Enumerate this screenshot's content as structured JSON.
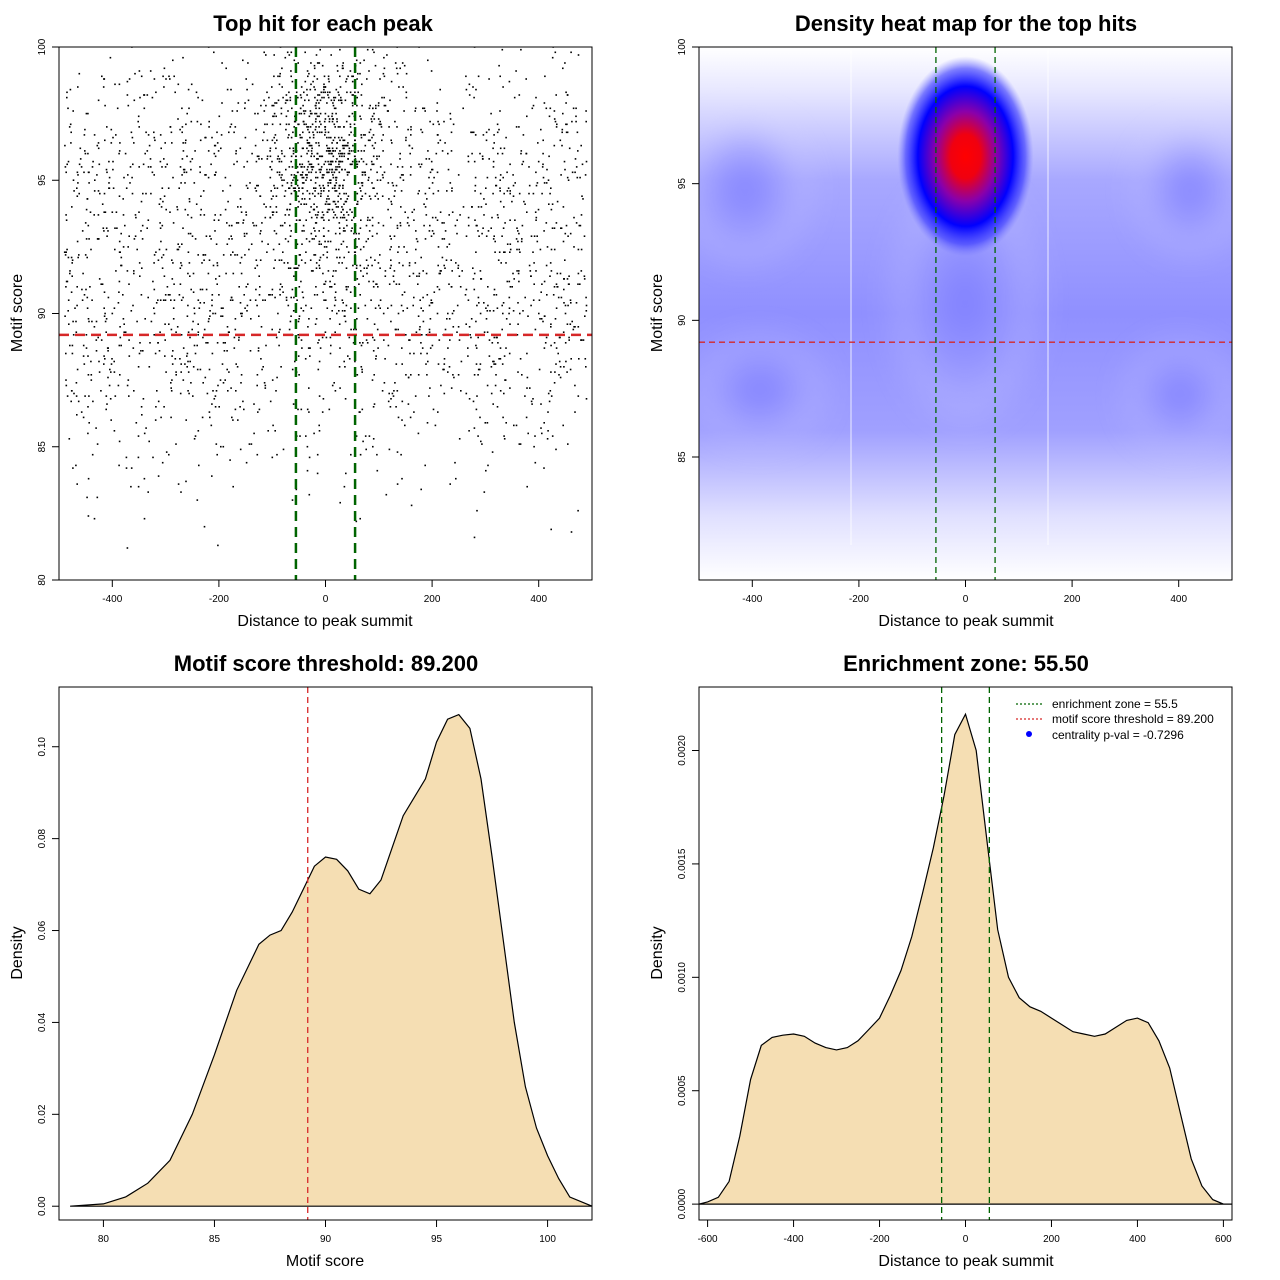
{
  "colors": {
    "threshold": "#d62728",
    "zone": "#006400",
    "fill": "#f5deb3",
    "heat_low": "#ffffff",
    "heat_mid": "#0000ff",
    "heat_high": "#ff0000",
    "centrality": "#0000ff"
  },
  "chart_data": [
    {
      "type": "scatter",
      "title": "Top hit for each peak",
      "xlabel": "Distance to peak summit",
      "ylabel": "Motif score",
      "xlim": [
        -500,
        500
      ],
      "ylim": [
        80,
        100
      ],
      "xticks": [
        -400,
        -200,
        0,
        200,
        400
      ],
      "yticks": [
        80,
        85,
        90,
        95,
        100
      ],
      "x_range_points": [
        -490,
        490
      ],
      "y_range_points": [
        80.5,
        100
      ],
      "approx_point_count": 3000,
      "threshold_y": 89.2,
      "zone_x": [
        -55.5,
        55.5
      ]
    },
    {
      "type": "heatmap",
      "title": "Density heat map for the top hits",
      "xlabel": "Distance to peak summit",
      "ylabel": "Motif score",
      "xlim": [
        -500,
        500
      ],
      "ylim": [
        80.5,
        100
      ],
      "xticks": [
        -400,
        -200,
        0,
        200,
        400
      ],
      "yticks": [
        85,
        90,
        95,
        100
      ],
      "peak": [
        0,
        96
      ],
      "threshold_y": 89.2,
      "zone_x": [
        -55.5,
        55.5
      ]
    },
    {
      "type": "area",
      "title": "Motif score threshold: 89.200",
      "xlabel": "Motif score",
      "ylabel": "Density",
      "xlim": [
        78,
        102
      ],
      "ylim": [
        -0.003,
        0.113
      ],
      "xticks": [
        80,
        85,
        90,
        95,
        100
      ],
      "yticks": [
        0.0,
        0.02,
        0.04,
        0.06,
        0.08,
        0.1
      ],
      "ytick_labels": [
        "0.00",
        "0.02",
        "0.04",
        "0.06",
        "0.08",
        "0.10"
      ],
      "x": [
        78.5,
        80,
        81,
        82,
        83,
        84,
        85,
        86,
        87,
        87.5,
        88,
        88.5,
        89,
        89.5,
        90,
        90.5,
        91,
        91.5,
        92,
        92.5,
        93,
        93.5,
        94,
        94.5,
        95,
        95.5,
        96,
        96.5,
        97,
        97.5,
        98,
        98.5,
        99,
        99.5,
        100,
        100.5,
        101,
        102
      ],
      "y": [
        0.0,
        0.0005,
        0.002,
        0.005,
        0.01,
        0.02,
        0.033,
        0.047,
        0.057,
        0.059,
        0.06,
        0.064,
        0.069,
        0.074,
        0.076,
        0.0755,
        0.073,
        0.069,
        0.068,
        0.071,
        0.078,
        0.085,
        0.089,
        0.093,
        0.101,
        0.106,
        0.107,
        0.104,
        0.093,
        0.076,
        0.058,
        0.04,
        0.026,
        0.017,
        0.011,
        0.006,
        0.002,
        0.0
      ],
      "threshold_x": 89.2
    },
    {
      "type": "area",
      "title": "Enrichment zone: 55.50",
      "xlabel": "Distance to peak summit",
      "ylabel": "Density",
      "xlim": [
        -620,
        620
      ],
      "ylim": [
        -7e-05,
        0.00228
      ],
      "xticks": [
        -600,
        -400,
        -200,
        0,
        200,
        400,
        600
      ],
      "yticks": [
        0.0,
        0.0005,
        0.001,
        0.0015,
        0.002
      ],
      "ytick_labels": [
        "0.0000",
        "0.0005",
        "0.0010",
        "0.0015",
        "0.0020"
      ],
      "x": [
        -620,
        -600,
        -575,
        -550,
        -525,
        -500,
        -475,
        -450,
        -425,
        -400,
        -375,
        -350,
        -325,
        -300,
        -275,
        -250,
        -225,
        -200,
        -175,
        -150,
        -125,
        -100,
        -75,
        -50,
        -25,
        0,
        25,
        50,
        75,
        100,
        125,
        150,
        175,
        200,
        225,
        250,
        275,
        300,
        325,
        350,
        375,
        400,
        425,
        450,
        475,
        500,
        525,
        550,
        575,
        600,
        620
      ],
      "y": [
        0,
        1e-05,
        3e-05,
        0.0001,
        0.0003,
        0.00055,
        0.0007,
        0.000735,
        0.000745,
        0.00075,
        0.00074,
        0.00071,
        0.00069,
        0.00068,
        0.00069,
        0.00072,
        0.00077,
        0.00082,
        0.00092,
        0.00103,
        0.00118,
        0.00137,
        0.00157,
        0.0018,
        0.00207,
        0.00216,
        0.002,
        0.0016,
        0.00121,
        0.001,
        0.00091,
        0.00087,
        0.00085,
        0.00082,
        0.00079,
        0.00076,
        0.00075,
        0.00074,
        0.00075,
        0.00078,
        0.00081,
        0.00082,
        0.0008,
        0.00072,
        0.0006,
        0.0004,
        0.0002,
        8e-05,
        2e-05,
        0.0,
        0.0
      ],
      "zone_x": [
        -55.5,
        55.5
      ],
      "legend": {
        "placement": "top-right",
        "entries": [
          "enrichment zone = 55.5",
          "motif score threshold = 89.200",
          "centrality p-val = -0.7296"
        ]
      }
    }
  ]
}
